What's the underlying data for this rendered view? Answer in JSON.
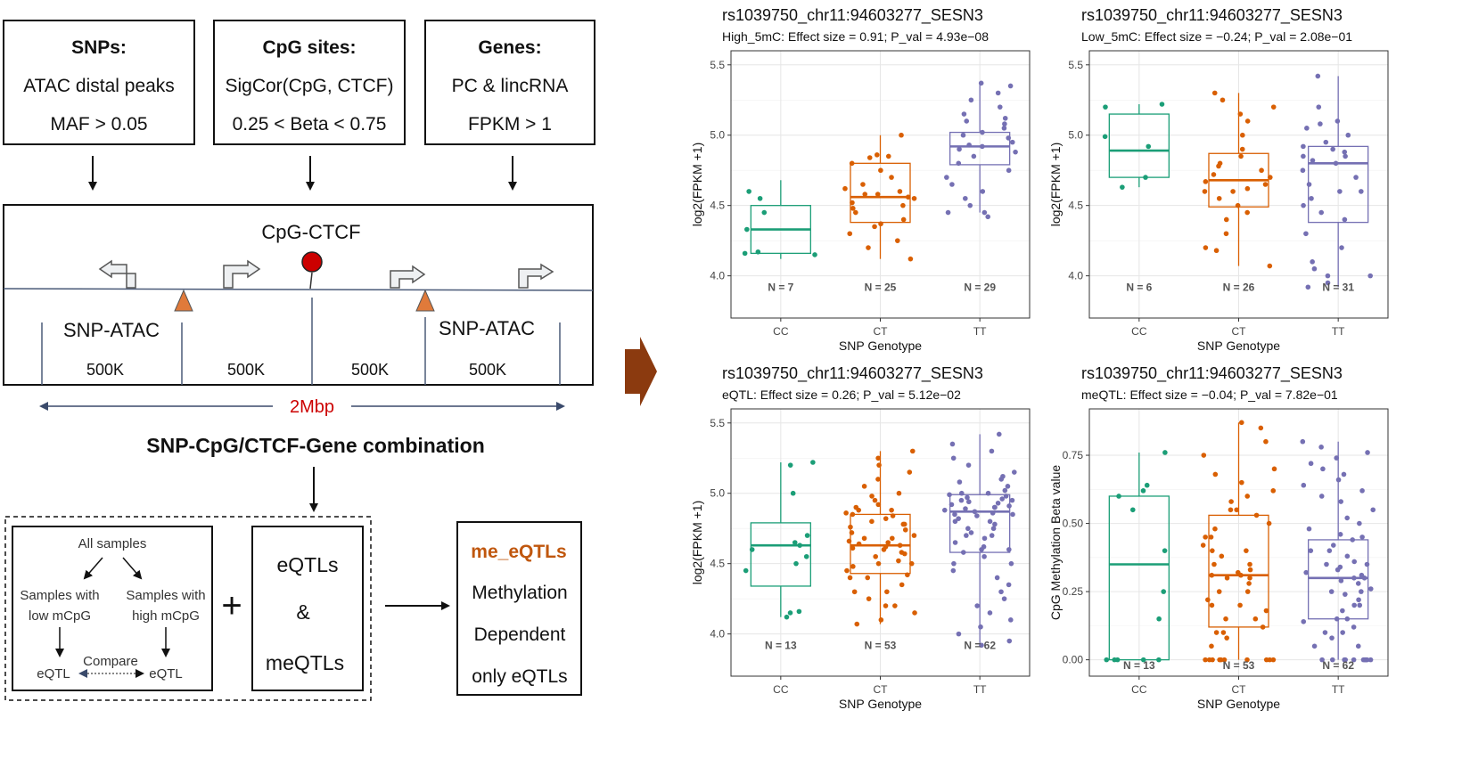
{
  "inputs": [
    {
      "title": "SNPs:",
      "lines": [
        "ATAC distal peaks",
        "MAF > 0.05"
      ]
    },
    {
      "title": "CpG sites:",
      "lines": [
        "SigCor(CpG, CTCF)",
        "0.25 < Beta < 0.75"
      ]
    },
    {
      "title": "Genes:",
      "lines": [
        "PC & lincRNA",
        "FPKM > 1"
      ]
    }
  ],
  "genome": {
    "cpg_label": "CpG-CTCF",
    "snp_left": "SNP-ATAC",
    "snp_right": "SNP-ATAC",
    "seg_labels": [
      "500K",
      "500K",
      "500K",
      "500K"
    ],
    "span_label": "2Mbp",
    "caption": "SNP-CpG/CTCF-Gene combination"
  },
  "workflow": {
    "all_samples": "All samples",
    "low_line1": "Samples with",
    "low_line2": "low mCpG",
    "high_line1": "Samples with",
    "high_line2": "high mCpG",
    "eqtl_left": "eQTL",
    "eqtl_right": "eQTL",
    "compare": "Compare",
    "plus": "+",
    "middle_lines": [
      "eQTLs",
      "&",
      "meQTLs"
    ],
    "result_title": "me_eQTLs",
    "result_lines": [
      "Methylation",
      "Dependent",
      "only eQTLs"
    ]
  },
  "colors": {
    "CC": "#1b9e77",
    "CT": "#d95f02",
    "TT": "#7570b3",
    "arrow": "#8b3a0f",
    "span": "#cc0000",
    "orange_tri": "#e07a3a",
    "cpg_dot": "#cc0000"
  },
  "chart_data": [
    {
      "type": "box",
      "title": "rs1039750_chr11:94603277_SESN3",
      "subtitle": "High_5mC: Effect size = 0.91; P_val = 4.93e−08",
      "xlabel": "SNP Genotype",
      "ylabel": "log2(FPKM +1)",
      "ylim": [
        3.7,
        5.6
      ],
      "yticks": [
        4.0,
        4.5,
        5.0,
        5.5
      ],
      "ytick_labels": [
        "4.0",
        "4.5",
        "5.0",
        "5.5"
      ],
      "n_y": 3.92,
      "categories": [
        "CC",
        "CT",
        "TT"
      ],
      "n_labels": [
        "N = 7",
        "N = 25",
        "N = 29"
      ],
      "boxes": [
        {
          "q1": 4.16,
          "median": 4.33,
          "q3": 4.5,
          "lo": 4.12,
          "hi": 4.68
        },
        {
          "q1": 4.38,
          "median": 4.56,
          "q3": 4.8,
          "lo": 4.12,
          "hi": 5.0
        },
        {
          "q1": 4.79,
          "median": 4.92,
          "q3": 5.02,
          "lo": 4.45,
          "hi": 5.37
        }
      ],
      "points": [
        [
          4.16,
          4.17,
          4.33,
          4.45,
          4.55,
          4.6,
          4.15
        ],
        [
          4.12,
          4.25,
          4.3,
          4.35,
          4.4,
          4.45,
          4.5,
          4.52,
          4.55,
          4.58,
          4.6,
          4.62,
          4.65,
          4.7,
          4.75,
          4.8,
          4.84,
          4.85,
          4.86,
          4.58,
          4.48,
          5.0,
          4.56,
          4.2,
          4.37
        ],
        [
          4.45,
          4.45,
          4.5,
          4.55,
          4.6,
          4.65,
          4.7,
          4.75,
          4.8,
          4.85,
          4.88,
          4.9,
          4.92,
          4.95,
          4.98,
          5.0,
          5.02,
          5.05,
          5.1,
          5.12,
          5.15,
          5.2,
          5.25,
          5.3,
          5.35,
          5.37,
          4.42,
          4.93,
          5.08
        ]
      ]
    },
    {
      "type": "box",
      "title": "rs1039750_chr11:94603277_SESN3",
      "subtitle": "Low_5mC: Effect size = −0.24; P_val = 2.08e−01",
      "xlabel": "SNP Genotype",
      "ylabel": "log2(FPKM +1)",
      "ylim": [
        3.7,
        5.6
      ],
      "yticks": [
        4.0,
        4.5,
        5.0,
        5.5
      ],
      "ytick_labels": [
        "4.0",
        "4.5",
        "5.0",
        "5.5"
      ],
      "n_y": 3.92,
      "categories": [
        "CC",
        "CT",
        "TT"
      ],
      "n_labels": [
        "N = 6",
        "N = 26",
        "N = 31"
      ],
      "boxes": [
        {
          "q1": 4.7,
          "median": 4.89,
          "q3": 5.15,
          "lo": 4.63,
          "hi": 5.22
        },
        {
          "q1": 4.49,
          "median": 4.68,
          "q3": 4.87,
          "lo": 4.07,
          "hi": 5.3
        },
        {
          "q1": 4.38,
          "median": 4.8,
          "q3": 4.92,
          "lo": 3.92,
          "hi": 5.42
        }
      ],
      "points": [
        [
          4.63,
          4.7,
          4.99,
          5.2,
          5.22,
          4.92
        ],
        [
          4.07,
          4.2,
          4.3,
          4.4,
          4.45,
          4.5,
          4.55,
          4.6,
          4.62,
          4.65,
          4.67,
          4.7,
          4.72,
          4.75,
          4.78,
          4.8,
          4.85,
          4.9,
          5.0,
          5.1,
          5.15,
          5.2,
          5.3,
          4.18,
          4.6,
          5.25
        ],
        [
          3.92,
          3.95,
          4.0,
          4.05,
          4.1,
          4.2,
          4.3,
          4.4,
          4.45,
          4.5,
          4.55,
          4.6,
          4.65,
          4.7,
          4.75,
          4.8,
          4.82,
          4.85,
          4.88,
          4.9,
          4.92,
          4.95,
          5.0,
          5.05,
          5.08,
          5.1,
          5.2,
          5.42,
          4.85,
          4.6,
          4.0
        ]
      ]
    },
    {
      "type": "box",
      "title": "rs1039750_chr11:94603277_SESN3",
      "subtitle": "eQTL: Effect size = 0.26; P_val = 5.12e−02",
      "xlabel": "SNP Genotype",
      "ylabel": "log2(FPKM +1)",
      "ylim": [
        3.7,
        5.6
      ],
      "yticks": [
        4.0,
        4.5,
        5.0,
        5.5
      ],
      "ytick_labels": [
        "4.0",
        "4.5",
        "5.0",
        "5.5"
      ],
      "n_y": 3.92,
      "categories": [
        "CC",
        "CT",
        "TT"
      ],
      "n_labels": [
        "N = 13",
        "N = 53",
        "N = 62"
      ],
      "boxes": [
        {
          "q1": 4.34,
          "median": 4.63,
          "q3": 4.79,
          "lo": 4.12,
          "hi": 5.22
        },
        {
          "q1": 4.43,
          "median": 4.63,
          "q3": 4.85,
          "lo": 4.07,
          "hi": 5.3
        },
        {
          "q1": 4.58,
          "median": 4.87,
          "q3": 4.99,
          "lo": 3.92,
          "hi": 5.42
        }
      ],
      "points": [
        [
          4.12,
          4.15,
          4.16,
          4.45,
          4.5,
          4.55,
          4.6,
          4.63,
          4.65,
          4.7,
          5.0,
          5.2,
          5.22
        ],
        [
          4.07,
          4.1,
          4.15,
          4.2,
          4.25,
          4.3,
          4.35,
          4.4,
          4.42,
          4.45,
          4.48,
          4.5,
          4.52,
          4.55,
          4.57,
          4.6,
          4.61,
          4.62,
          4.63,
          4.64,
          4.65,
          4.66,
          4.68,
          4.7,
          4.72,
          4.74,
          4.76,
          4.78,
          4.8,
          4.82,
          4.84,
          4.85,
          4.86,
          4.88,
          4.9,
          4.92,
          4.95,
          4.98,
          5.0,
          5.05,
          5.1,
          5.15,
          5.2,
          5.25,
          5.3,
          4.4,
          4.58,
          4.68,
          4.78,
          4.88,
          4.3,
          4.2,
          4.5
        ],
        [
          3.92,
          3.95,
          4.0,
          4.05,
          4.1,
          4.15,
          4.2,
          4.25,
          4.3,
          4.35,
          4.4,
          4.45,
          4.5,
          4.55,
          4.58,
          4.6,
          4.62,
          4.65,
          4.68,
          4.7,
          4.72,
          4.75,
          4.78,
          4.8,
          4.82,
          4.84,
          4.85,
          4.86,
          4.87,
          4.88,
          4.89,
          4.9,
          4.91,
          4.92,
          4.93,
          4.94,
          4.95,
          4.96,
          4.97,
          4.98,
          4.99,
          5.0,
          5.02,
          5.05,
          5.08,
          5.1,
          5.12,
          5.15,
          5.2,
          5.25,
          5.3,
          5.35,
          5.42,
          4.7,
          4.8,
          4.9,
          5.0,
          4.6,
          4.5,
          4.85,
          4.95,
          4.75
        ]
      ]
    },
    {
      "type": "box",
      "title": "rs1039750_chr11:94603277_SESN3",
      "subtitle": "meQTL: Effect size = −0.04; P_val = 7.82e−01",
      "xlabel": "SNP Genotype",
      "ylabel": "CpG Methylation Beta value",
      "ylim": [
        -0.06,
        0.92
      ],
      "yticks": [
        0.0,
        0.25,
        0.5,
        0.75
      ],
      "ytick_labels": [
        "0.00",
        "0.25",
        "0.50",
        "0.75"
      ],
      "n_y": -0.02,
      "categories": [
        "CC",
        "CT",
        "TT"
      ],
      "n_labels": [
        "N = 13",
        "N = 53",
        "N = 62"
      ],
      "boxes": [
        {
          "q1": 0.0,
          "median": 0.35,
          "q3": 0.6,
          "lo": 0.0,
          "hi": 0.76
        },
        {
          "q1": 0.12,
          "median": 0.31,
          "q3": 0.53,
          "lo": 0.0,
          "hi": 0.87
        },
        {
          "q1": 0.15,
          "median": 0.3,
          "q3": 0.44,
          "lo": 0.0,
          "hi": 0.8
        }
      ],
      "points": [
        [
          0.0,
          0.0,
          0.0,
          0.0,
          0.15,
          0.25,
          0.4,
          0.55,
          0.6,
          0.62,
          0.64,
          0.76,
          0.0
        ],
        [
          0.0,
          0.0,
          0.0,
          0.0,
          0.0,
          0.0,
          0.0,
          0.0,
          0.0,
          0.05,
          0.08,
          0.1,
          0.12,
          0.15,
          0.18,
          0.2,
          0.22,
          0.25,
          0.28,
          0.3,
          0.31,
          0.32,
          0.33,
          0.35,
          0.38,
          0.4,
          0.42,
          0.45,
          0.48,
          0.5,
          0.53,
          0.55,
          0.58,
          0.6,
          0.62,
          0.65,
          0.68,
          0.7,
          0.75,
          0.8,
          0.85,
          0.87,
          0.3,
          0.2,
          0.35,
          0.45,
          0.25,
          0.15,
          0.55,
          0.4,
          0.1,
          0.0,
          0.31
        ],
        [
          0.0,
          0.0,
          0.0,
          0.0,
          0.0,
          0.0,
          0.0,
          0.0,
          0.0,
          0.0,
          0.05,
          0.08,
          0.1,
          0.12,
          0.14,
          0.15,
          0.18,
          0.2,
          0.22,
          0.24,
          0.25,
          0.26,
          0.28,
          0.29,
          0.3,
          0.31,
          0.32,
          0.33,
          0.34,
          0.35,
          0.36,
          0.38,
          0.4,
          0.42,
          0.44,
          0.46,
          0.48,
          0.5,
          0.52,
          0.55,
          0.58,
          0.6,
          0.62,
          0.64,
          0.66,
          0.68,
          0.7,
          0.72,
          0.74,
          0.76,
          0.78,
          0.8,
          0.3,
          0.2,
          0.4,
          0.1,
          0.25,
          0.35,
          0.15,
          0.45,
          0.05,
          0.0
        ]
      ]
    }
  ]
}
